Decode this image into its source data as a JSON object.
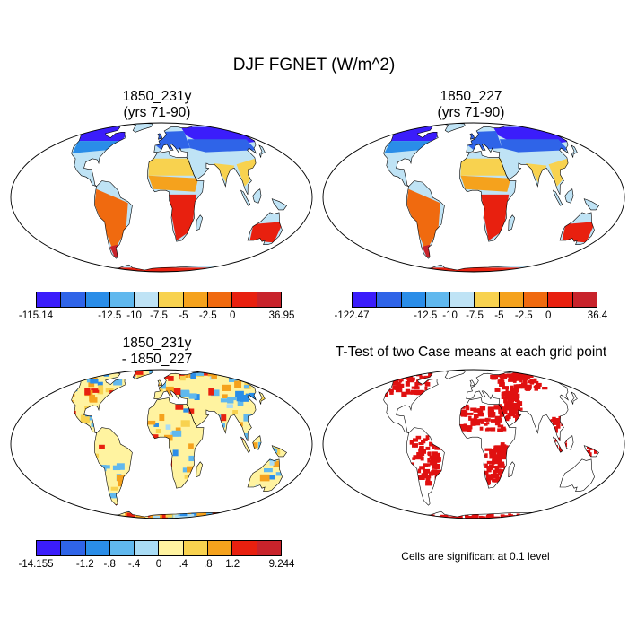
{
  "main_title": "DJF FGNET (W/m^2)",
  "panels": [
    {
      "line1": "1850_231y",
      "line2": "(yrs 71-90)",
      "kind": "field",
      "colorbar": {
        "colors": [
          "#3b1dfb",
          "#2f64e8",
          "#2a8de8",
          "#60b8ee",
          "#bfe3f5",
          "#f8d24f",
          "#f5a21d",
          "#f06a0f",
          "#e8200f",
          "#c8232b"
        ],
        "labels": [
          "-115.14",
          "-12.5",
          "-10",
          "-7.5",
          "-5",
          "-2.5",
          "0",
          "36.95"
        ]
      }
    },
    {
      "line1": "1850_227",
      "line2": "(yrs 71-90)",
      "kind": "field",
      "colorbar": {
        "colors": [
          "#3b1dfb",
          "#2f64e8",
          "#2a8de8",
          "#60b8ee",
          "#bfe3f5",
          "#f8d24f",
          "#f5a21d",
          "#f06a0f",
          "#e8200f",
          "#c8232b"
        ],
        "labels": [
          "-122.47",
          "-12.5",
          "-10",
          "-7.5",
          "-5",
          "-2.5",
          "0",
          "36.4"
        ]
      }
    },
    {
      "line1": "1850_231y",
      "line2": "- 1850_227",
      "kind": "diff",
      "colorbar": {
        "colors": [
          "#3b1dfb",
          "#2f64e8",
          "#2a8de8",
          "#60b8ee",
          "#a9dcf5",
          "#fff3a0",
          "#f8d24f",
          "#f5a21d",
          "#e8200f",
          "#c8232b"
        ],
        "labels": [
          "-14.155",
          "-1.2",
          "-.8",
          "-.4",
          "0",
          ".4",
          ".8",
          "1.2",
          "9.244"
        ]
      }
    },
    {
      "line1": "T-Test of two Case means at each grid point",
      "line2": "",
      "kind": "ttest",
      "note": "Cells are significant at 0.1 level"
    }
  ],
  "colors": {
    "ocean": "#ffffff",
    "coast": "#000000",
    "significant": "#e01010"
  }
}
